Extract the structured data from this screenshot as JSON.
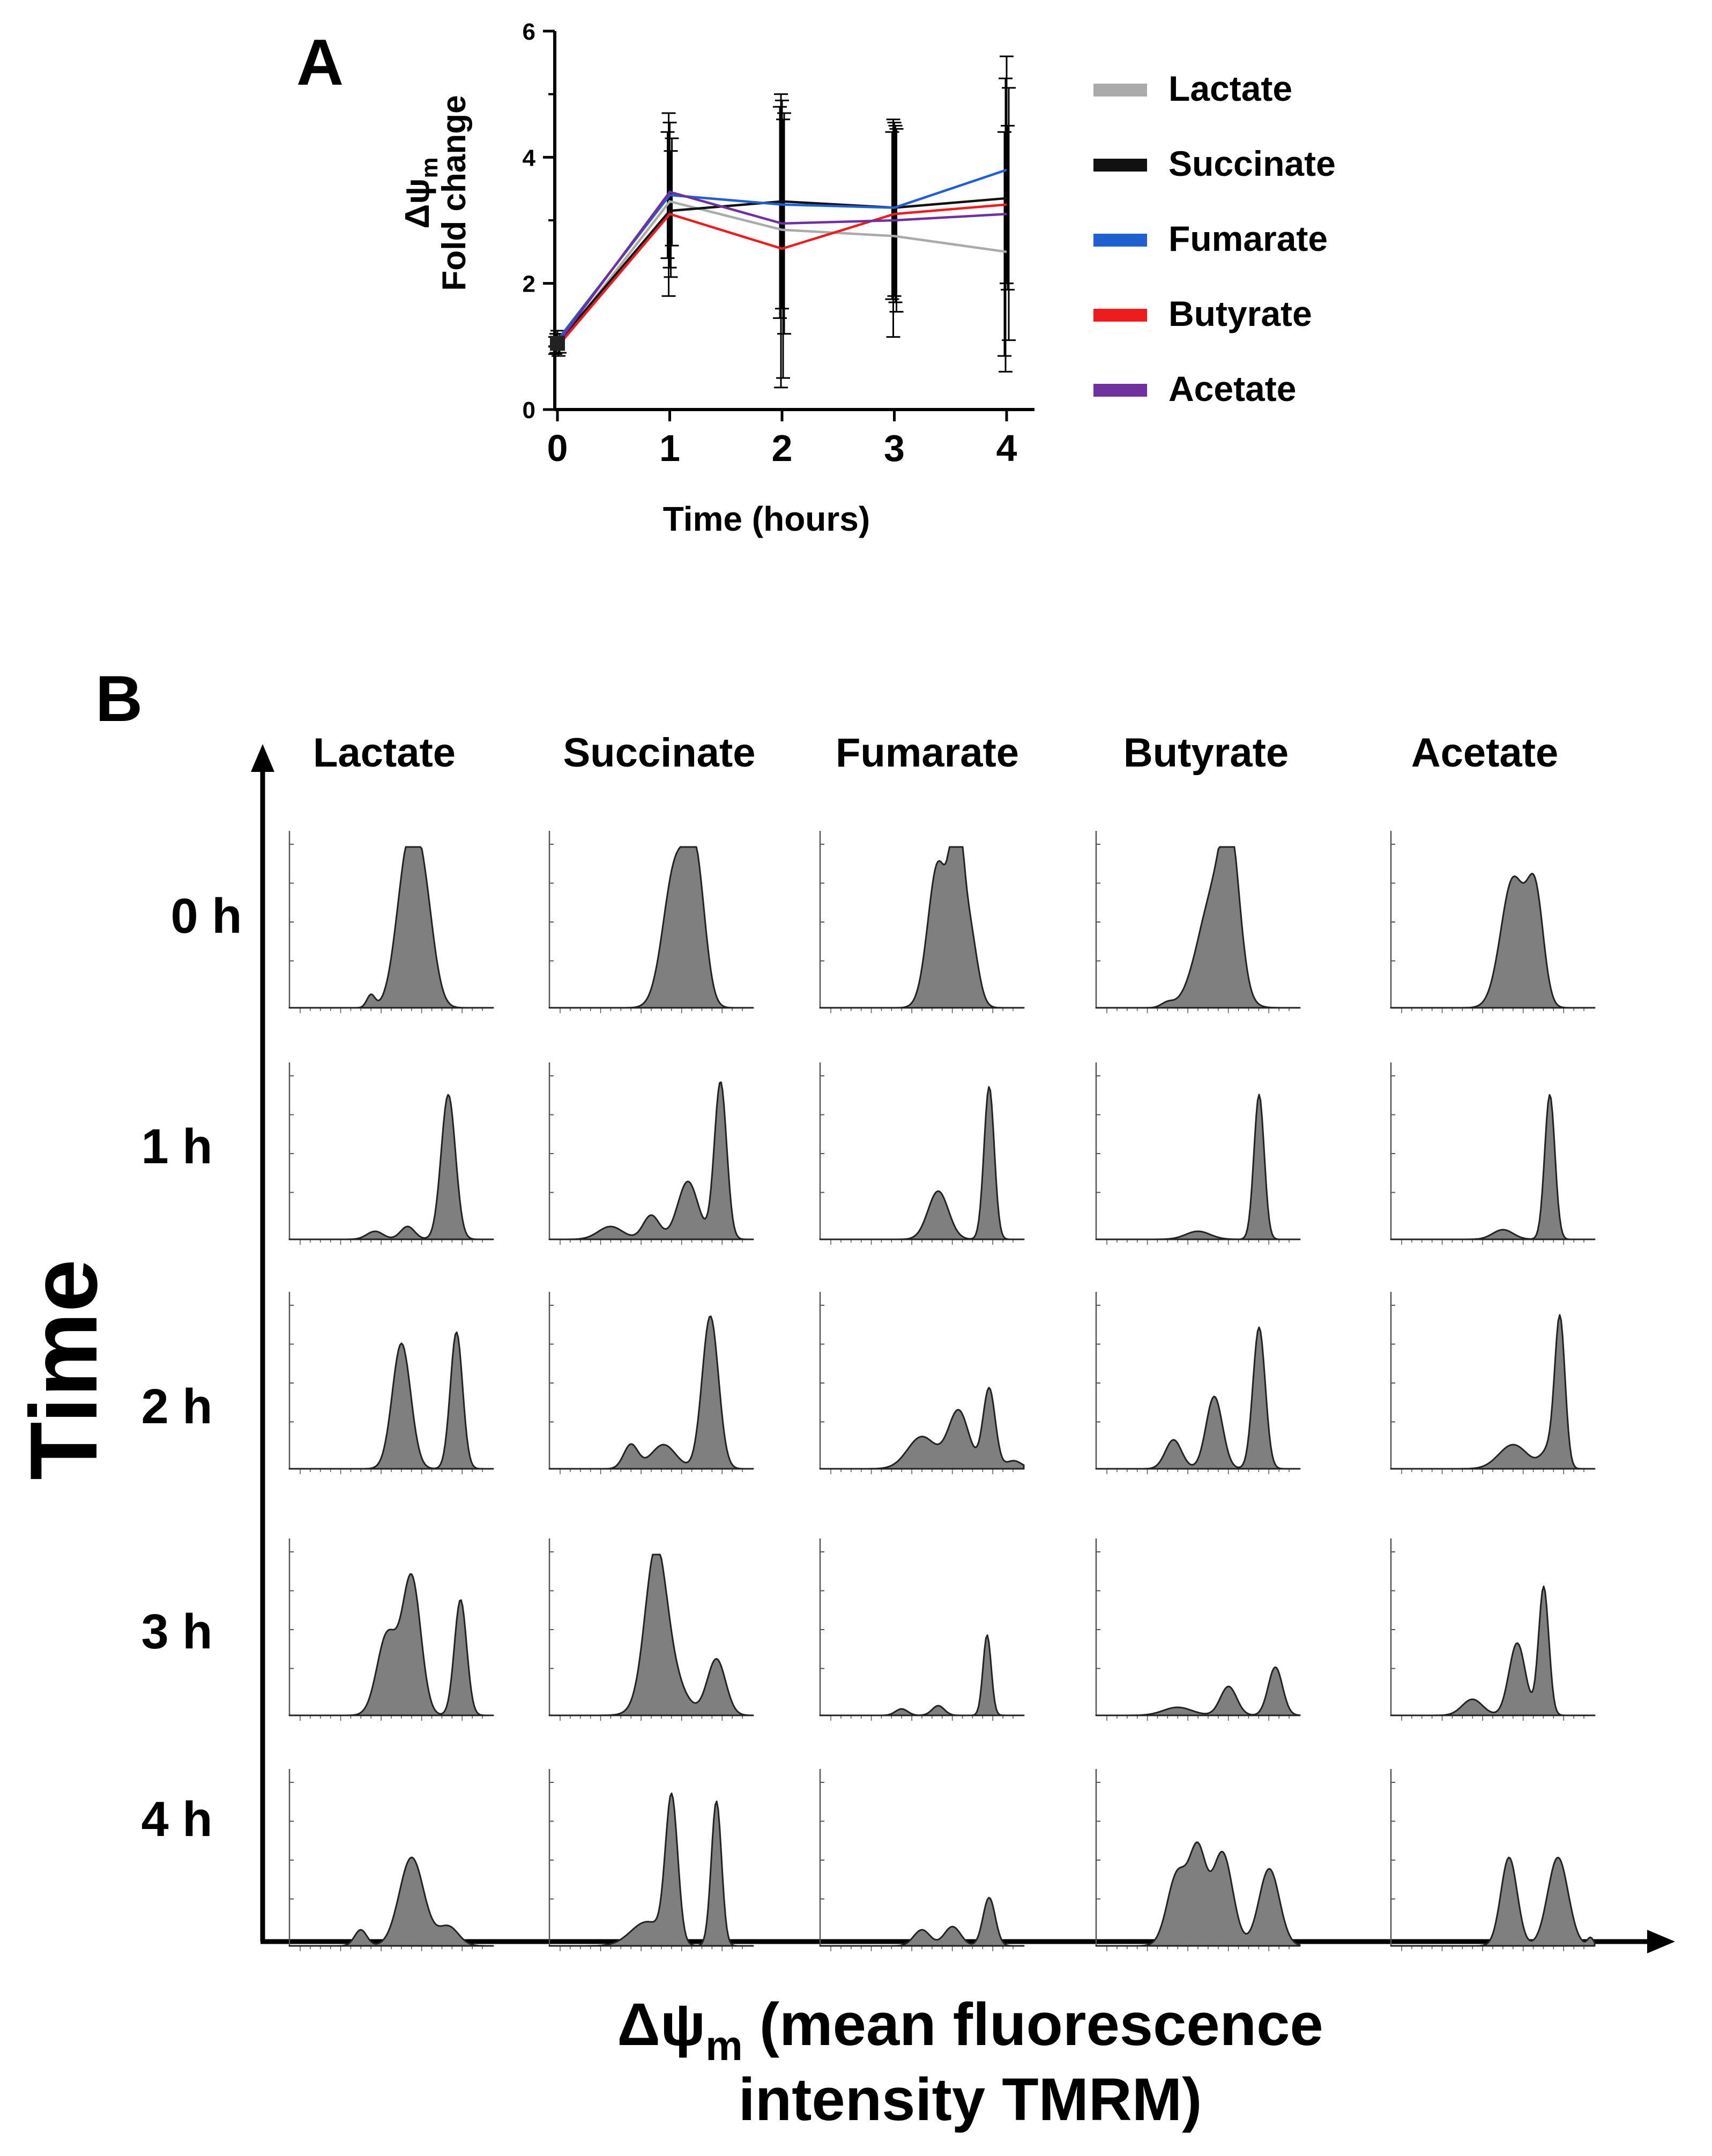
{
  "panels": {
    "a": "A",
    "b": "B"
  },
  "chart_data": [
    {
      "type": "line",
      "panel": "A",
      "title": "",
      "ylabel_line1": "Δψ",
      "ylabel_sub": "m",
      "ylabel_line2": "Fold change",
      "xlabel": "Time (hours)",
      "x": [
        0,
        1,
        2,
        3,
        4
      ],
      "xticks": [
        "0",
        "1",
        "2",
        "3",
        "4"
      ],
      "ylim": [
        0,
        6
      ],
      "yticks": [
        "0",
        "2",
        "4",
        "6"
      ],
      "legend_position": "right",
      "series": [
        {
          "name": "Lactate",
          "color": "#aaaaaa",
          "values": [
            1.0,
            3.3,
            2.85,
            2.75,
            2.5
          ],
          "err_hi": [
            1.15,
            4.4,
            4.8,
            4.4,
            4.4
          ],
          "err_lo": [
            0.88,
            2.4,
            1.45,
            1.75,
            0.85
          ]
        },
        {
          "name": "Succinate",
          "color": "#111111",
          "values": [
            1.05,
            3.15,
            3.3,
            3.2,
            3.35
          ],
          "err_hi": [
            1.2,
            4.7,
            5.0,
            4.6,
            5.25
          ],
          "err_lo": [
            0.9,
            1.8,
            0.35,
            1.15,
            0.6
          ]
        },
        {
          "name": "Fumarate",
          "color": "#1f5fd0",
          "values": [
            1.1,
            3.4,
            3.25,
            3.2,
            3.8
          ],
          "err_hi": [
            1.25,
            4.55,
            4.9,
            4.55,
            5.6
          ],
          "err_lo": [
            0.95,
            2.25,
            1.6,
            1.8,
            2.0
          ]
        },
        {
          "name": "Butyrate",
          "color": "#ee1c1c",
          "values": [
            1.0,
            3.1,
            2.55,
            3.1,
            3.25
          ],
          "err_hi": [
            1.15,
            4.1,
            4.6,
            4.5,
            4.5
          ],
          "err_lo": [
            0.85,
            2.1,
            0.5,
            1.7,
            1.9
          ]
        },
        {
          "name": "Acetate",
          "color": "#7030a0",
          "values": [
            1.05,
            3.45,
            2.95,
            3.0,
            3.1
          ],
          "err_hi": [
            1.2,
            4.3,
            4.7,
            4.45,
            5.1
          ],
          "err_lo": [
            0.9,
            2.6,
            1.2,
            1.55,
            1.1
          ]
        }
      ]
    },
    {
      "type": "histogram-grid",
      "panel": "B",
      "columns": [
        "Lactate",
        "Succinate",
        "Fumarate",
        "Butyrate",
        "Acetate"
      ],
      "rows": [
        "0 h",
        "1 h",
        "2 h",
        "3 h",
        "4 h"
      ],
      "y_axis_label": "Time",
      "x_axis_label_line1_main": "Δψ",
      "x_axis_label_line1_sub": "m",
      "x_axis_label_line1_rest": " (mean fluorescence",
      "x_axis_label_line2": "intensity TMRM)",
      "x_domain": [
        0,
        1
      ],
      "peak_format": "[center, height, width] with center and width as fraction of the plotted intensity range, height as fraction of the tallest peak",
      "cells": [
        [
          [
            [
              0.4,
              0.08,
              0.02
            ],
            [
              0.58,
              0.9,
              0.055
            ],
            [
              0.66,
              0.6,
              0.05
            ]
          ],
          [
            [
              0.62,
              0.88,
              0.06
            ],
            [
              0.72,
              0.8,
              0.045
            ]
          ],
          [
            [
              0.58,
              0.9,
              0.05
            ],
            [
              0.67,
              0.98,
              0.03
            ],
            [
              0.73,
              0.5,
              0.04
            ]
          ],
          [
            [
              0.35,
              0.03,
              0.03
            ],
            [
              0.58,
              0.7,
              0.08
            ],
            [
              0.66,
              0.75,
              0.045
            ]
          ],
          [
            [
              0.6,
              0.8,
              0.06
            ],
            [
              0.71,
              0.65,
              0.04
            ]
          ]
        ],
        [
          [
            [
              0.42,
              0.05,
              0.04
            ],
            [
              0.58,
              0.08,
              0.035
            ],
            [
              0.78,
              0.9,
              0.035
            ]
          ],
          [
            [
              0.3,
              0.08,
              0.06
            ],
            [
              0.5,
              0.15,
              0.04
            ],
            [
              0.68,
              0.36,
              0.05
            ],
            [
              0.84,
              0.98,
              0.03
            ]
          ],
          [
            [
              0.58,
              0.3,
              0.05
            ],
            [
              0.83,
              0.95,
              0.025
            ]
          ],
          [
            [
              0.5,
              0.05,
              0.06
            ],
            [
              0.8,
              0.9,
              0.025
            ]
          ],
          [
            [
              0.55,
              0.06,
              0.05
            ],
            [
              0.78,
              0.9,
              0.025
            ]
          ]
        ],
        [
          [
            [
              0.55,
              0.78,
              0.045
            ],
            [
              0.82,
              0.85,
              0.03
            ]
          ],
          [
            [
              0.4,
              0.15,
              0.035
            ],
            [
              0.56,
              0.15,
              0.06
            ],
            [
              0.79,
              0.95,
              0.04
            ]
          ],
          [
            [
              0.5,
              0.2,
              0.07
            ],
            [
              0.68,
              0.36,
              0.05
            ],
            [
              0.83,
              0.5,
              0.03
            ],
            [
              0.95,
              0.05,
              0.04
            ]
          ],
          [
            [
              0.38,
              0.18,
              0.04
            ],
            [
              0.58,
              0.45,
              0.04
            ],
            [
              0.8,
              0.88,
              0.03
            ]
          ],
          [
            [
              0.6,
              0.15,
              0.07
            ],
            [
              0.78,
              0.12,
              0.04
            ],
            [
              0.83,
              0.9,
              0.025
            ]
          ]
        ],
        [
          [
            [
              0.48,
              0.5,
              0.05
            ],
            [
              0.6,
              0.85,
              0.045
            ],
            [
              0.84,
              0.72,
              0.03
            ]
          ],
          [
            [
              0.52,
              0.75,
              0.05
            ],
            [
              0.56,
              0.35,
              0.08
            ],
            [
              0.82,
              0.35,
              0.045
            ]
          ],
          [
            [
              0.4,
              0.04,
              0.03
            ],
            [
              0.58,
              0.06,
              0.03
            ],
            [
              0.82,
              0.5,
              0.02
            ]
          ],
          [
            [
              0.4,
              0.05,
              0.07
            ],
            [
              0.65,
              0.18,
              0.04
            ],
            [
              0.88,
              0.3,
              0.035
            ]
          ],
          [
            [
              0.4,
              0.1,
              0.05
            ],
            [
              0.62,
              0.45,
              0.04
            ],
            [
              0.75,
              0.8,
              0.025
            ]
          ]
        ],
        [
          [
            [
              0.35,
              0.1,
              0.03
            ],
            [
              0.6,
              0.55,
              0.06
            ],
            [
              0.78,
              0.12,
              0.05
            ]
          ],
          [
            [
              0.48,
              0.15,
              0.08
            ],
            [
              0.6,
              0.9,
              0.03
            ],
            [
              0.82,
              0.9,
              0.025
            ]
          ],
          [
            [
              0.5,
              0.1,
              0.04
            ],
            [
              0.65,
              0.12,
              0.04
            ],
            [
              0.83,
              0.3,
              0.03
            ]
          ],
          [
            [
              0.4,
              0.45,
              0.05
            ],
            [
              0.5,
              0.55,
              0.04
            ],
            [
              0.62,
              0.58,
              0.05
            ],
            [
              0.85,
              0.48,
              0.05
            ]
          ],
          [
            [
              0.58,
              0.55,
              0.04
            ],
            [
              0.82,
              0.55,
              0.05
            ],
            [
              0.98,
              0.05,
              0.015
            ]
          ]
        ]
      ]
    }
  ]
}
